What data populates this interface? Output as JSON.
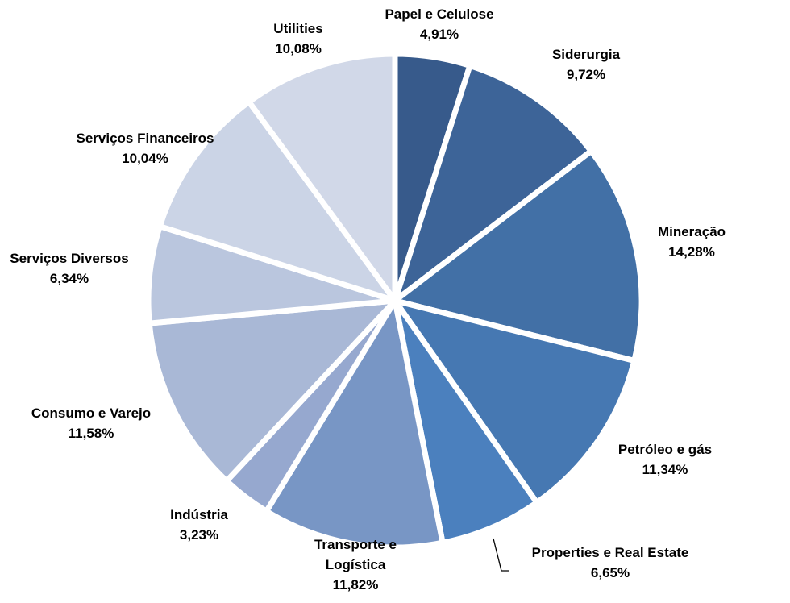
{
  "chart_data": {
    "type": "pie",
    "start_angle_deg": 0,
    "direction": "clockwise",
    "slices": [
      {
        "label": "Papel e Celulose",
        "value": 4.91,
        "value_label": "4,91%",
        "color": "#375A8B"
      },
      {
        "label": "Siderurgia",
        "value": 9.72,
        "value_label": "9,72%",
        "color": "#3D6498"
      },
      {
        "label": "Mineração",
        "value": 14.28,
        "value_label": "14,28%",
        "color": "#4270A6"
      },
      {
        "label": "Petróleo e gás",
        "value": 11.34,
        "value_label": "11,34%",
        "color": "#4678B2"
      },
      {
        "label": "Properties e Real Estate",
        "value": 6.65,
        "value_label": "6,65%",
        "color": "#4B80BE"
      },
      {
        "label": "Transporte e Logística",
        "value": 11.82,
        "value_label": "11,82%",
        "color": "#7896C5",
        "label_lines": [
          "Transporte e",
          "Logística"
        ]
      },
      {
        "label": "Indústria",
        "value": 3.23,
        "value_label": "3,23%",
        "color": "#96A8CF"
      },
      {
        "label": "Consumo e Varejo",
        "value": 11.58,
        "value_label": "11,58%",
        "color": "#A9B8D6"
      },
      {
        "label": "Serviços Diversos",
        "value": 6.34,
        "value_label": "6,34%",
        "color": "#BAC6DE"
      },
      {
        "label": "Serviços Financeiros",
        "value": 10.04,
        "value_label": "10,04%",
        "color": "#CBD4E6"
      },
      {
        "label": "Utilities",
        "value": 10.08,
        "value_label": "10,08%",
        "color": "#D1D8E8"
      }
    ],
    "legend": "none",
    "data_labels": "outside"
  }
}
